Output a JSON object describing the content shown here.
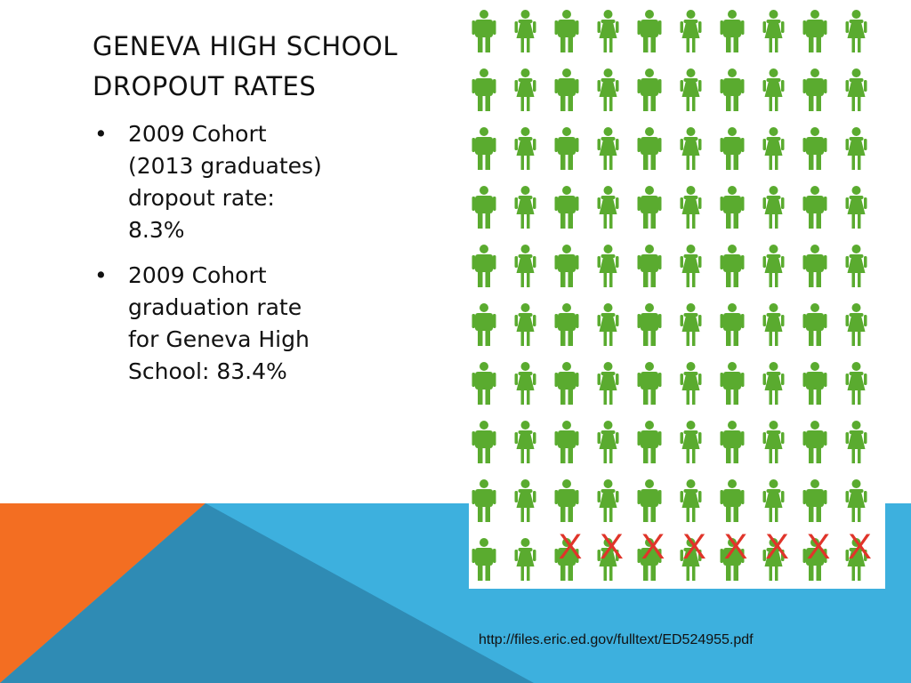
{
  "slide": {
    "title_lines": [
      "GENEVA HIGH SCHOOL",
      "DROPOUT RATES"
    ],
    "bullets": [
      {
        "lines": [
          "2009 Cohort",
          "(2013 graduates)",
          "dropout rate:",
          "8.3%"
        ]
      },
      {
        "lines": [
          "2009 Cohort",
          "graduation rate",
          "for Geneva High",
          "School: 83.4%"
        ]
      }
    ],
    "source_url": "http://files.eric.ed.gov/fulltext/ED524955.pdf"
  },
  "figure": {
    "rows": 10,
    "cols": 10,
    "figure_color": "#5aab2f",
    "x_color": "#e0342a",
    "x_mark_text": "X",
    "x_marked_cols_last_row": [
      2,
      3,
      4,
      5,
      6,
      7,
      8,
      9
    ]
  },
  "colors": {
    "orange": "#f36e22",
    "blue": "#3db0de",
    "dark_blue": "#2f8bb4",
    "title_text": "#111111"
  }
}
